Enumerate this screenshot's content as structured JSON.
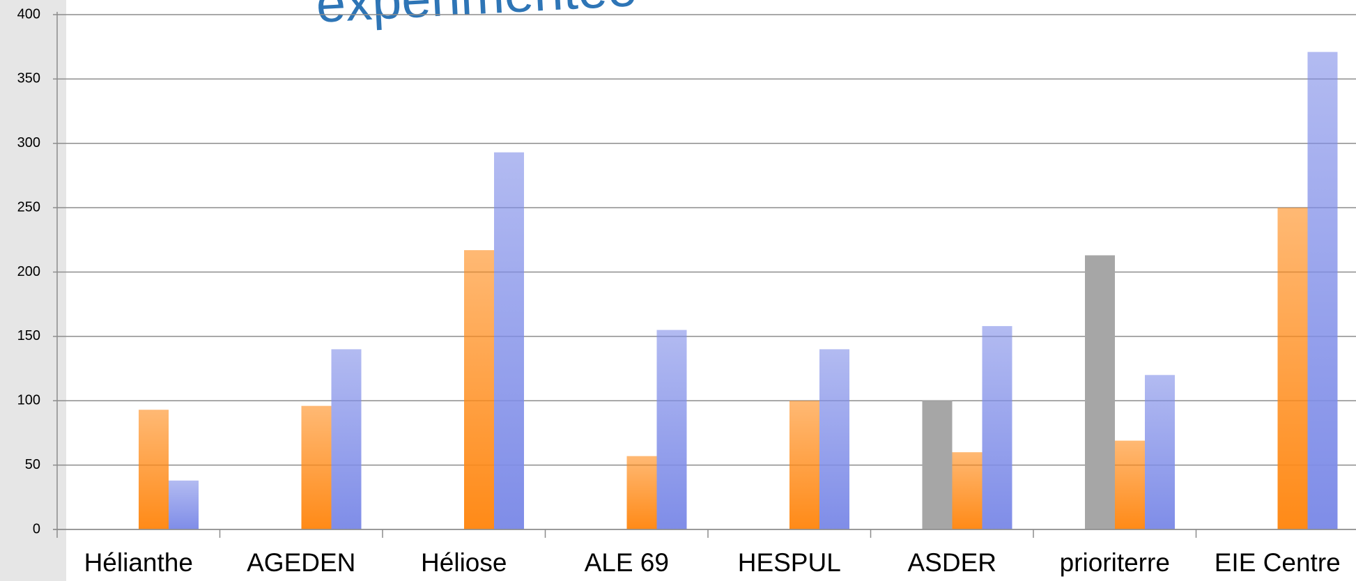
{
  "chart_data": {
    "type": "bar",
    "title": "expérimentée",
    "categories": [
      "Hélianthe",
      "AGEDEN",
      "Héliose",
      "ALE 69",
      "HESPUL",
      "ASDER",
      "prioriterre",
      "EIE Centre"
    ],
    "series": [
      {
        "color": "#a6a6a6",
        "values": [
          null,
          null,
          null,
          null,
          null,
          100,
          213,
          null
        ]
      },
      {
        "color": "#ff8a17",
        "values": [
          93,
          96,
          217,
          57,
          100,
          60,
          69,
          250
        ]
      },
      {
        "color": "#7f8de8",
        "values": [
          38,
          140,
          293,
          155,
          140,
          158,
          120,
          371
        ]
      }
    ],
    "ylim": [
      0,
      400
    ],
    "yticks": [
      0,
      50,
      100,
      150,
      200,
      250,
      300,
      350,
      400
    ],
    "grid": true
  }
}
